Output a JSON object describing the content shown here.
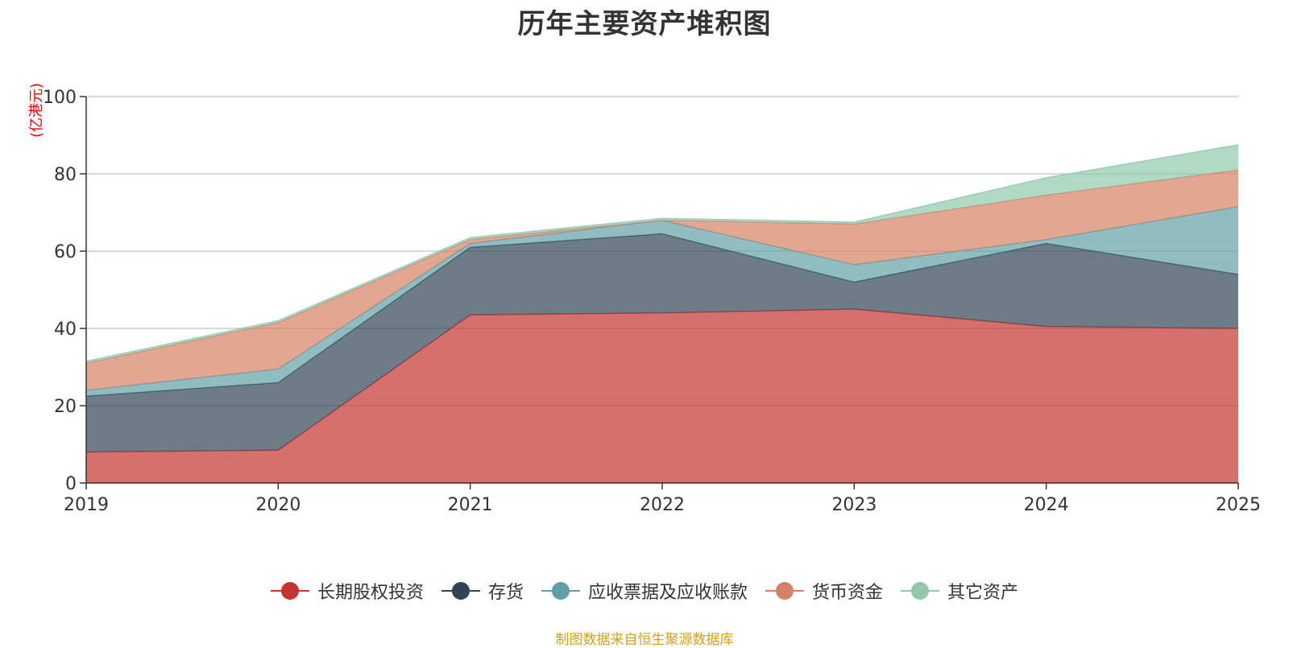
{
  "chart_data": {
    "type": "area",
    "stacked": true,
    "title": "历年主要资产堆积图",
    "ylabel": "(亿港元)",
    "xlabel": "",
    "x": [
      "2019",
      "2020",
      "2021",
      "2022",
      "2023",
      "2024",
      "2025"
    ],
    "ylim": [
      0,
      100
    ],
    "yticks": [
      0,
      20,
      40,
      60,
      80,
      100
    ],
    "grid": true,
    "legend_position": "bottom",
    "series": [
      {
        "name": "长期股权投资",
        "color": "#c23531",
        "values": [
          8.0,
          8.5,
          43.5,
          44.0,
          45.0,
          40.5,
          40.0
        ]
      },
      {
        "name": "存货",
        "color": "#2f4554",
        "values": [
          14.5,
          17.5,
          17.5,
          20.5,
          7.0,
          21.5,
          14.0
        ]
      },
      {
        "name": "应收票据及应收账款",
        "color": "#61a0a8",
        "values": [
          1.5,
          3.5,
          1.0,
          3.5,
          4.5,
          1.0,
          17.5
        ]
      },
      {
        "name": "货币资金",
        "color": "#d48265",
        "values": [
          7.0,
          12.0,
          1.0,
          0.0,
          10.5,
          11.5,
          9.5
        ]
      },
      {
        "name": "其它资产",
        "color": "#91c7ae",
        "values": [
          0.5,
          0.5,
          0.5,
          0.5,
          0.5,
          4.5,
          6.5
        ]
      }
    ]
  },
  "source_note": "制图数据来自恒生聚源数据库"
}
